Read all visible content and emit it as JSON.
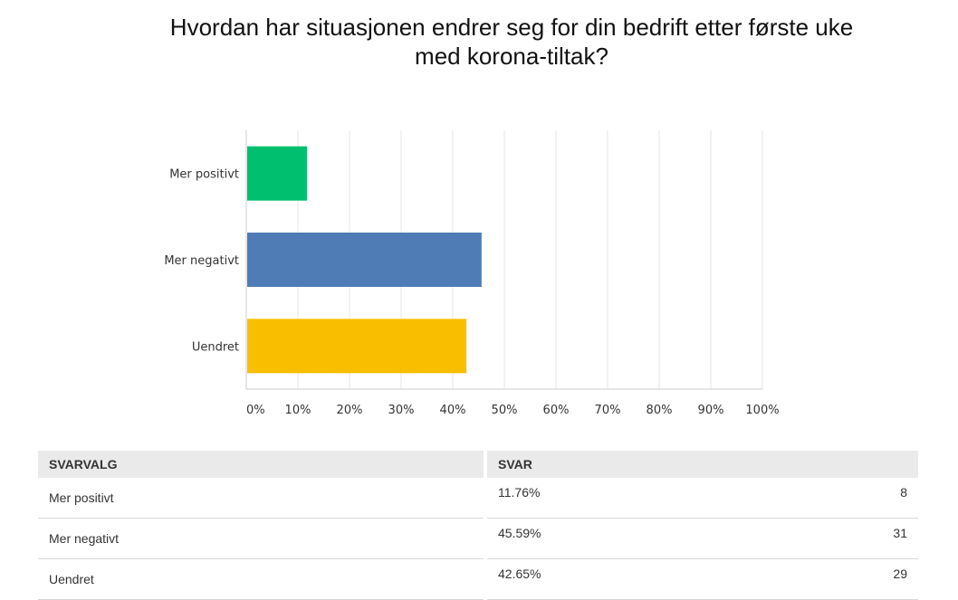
{
  "title": {
    "line1": "Hvordan har situasjonen endrer seg for din bedrift etter første uke",
    "line2": "med korona-tiltak?"
  },
  "chart_data": {
    "type": "bar",
    "orientation": "horizontal",
    "categories": [
      "Mer positivt",
      "Mer negativt",
      "Uendret"
    ],
    "values": [
      11.76,
      45.59,
      42.65
    ],
    "colors": [
      "#00bf6f",
      "#507cb6",
      "#f9be00"
    ],
    "xlim": [
      0,
      100
    ],
    "xticks": [
      "0%",
      "10%",
      "20%",
      "30%",
      "40%",
      "50%",
      "60%",
      "70%",
      "80%",
      "90%",
      "100%"
    ],
    "grid": true,
    "gridColor": "#e6e6e6",
    "legend": "none"
  },
  "table": {
    "headers": [
      "SVARVALG",
      "SVAR"
    ],
    "rows": [
      {
        "choice": "Mer positivt",
        "percent": "11.76%",
        "count": "8"
      },
      {
        "choice": "Mer negativt",
        "percent": "45.59%",
        "count": "31"
      },
      {
        "choice": "Uendret",
        "percent": "42.65%",
        "count": "29"
      }
    ]
  }
}
